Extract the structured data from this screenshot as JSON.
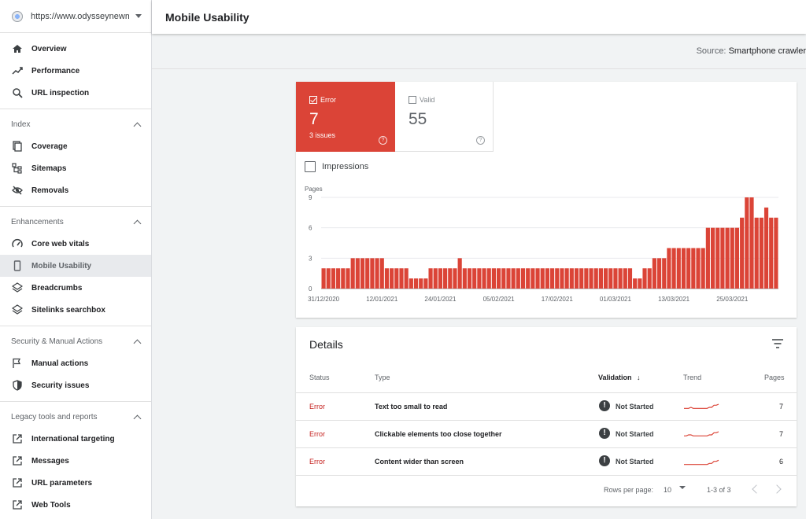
{
  "property": {
    "url": "https://www.odysseynewme..."
  },
  "sidebar": {
    "top_items": [
      {
        "label": "Overview",
        "icon": "home-icon"
      },
      {
        "label": "Performance",
        "icon": "trend-icon"
      },
      {
        "label": "URL inspection",
        "icon": "search-icon"
      }
    ],
    "groups": [
      {
        "title": "Index",
        "items": [
          {
            "label": "Coverage",
            "icon": "coverage-icon"
          },
          {
            "label": "Sitemaps",
            "icon": "sitemap-icon"
          },
          {
            "label": "Removals",
            "icon": "eye-off-icon"
          }
        ]
      },
      {
        "title": "Enhancements",
        "items": [
          {
            "label": "Core web vitals",
            "icon": "gauge-icon"
          },
          {
            "label": "Mobile Usability",
            "icon": "phone-icon",
            "active": true
          },
          {
            "label": "Breadcrumbs",
            "icon": "layers-icon"
          },
          {
            "label": "Sitelinks searchbox",
            "icon": "layers-icon"
          }
        ]
      },
      {
        "title": "Security & Manual Actions",
        "items": [
          {
            "label": "Manual actions",
            "icon": "flag-icon"
          },
          {
            "label": "Security issues",
            "icon": "shield-icon"
          }
        ]
      },
      {
        "title": "Legacy tools and reports",
        "items": [
          {
            "label": "International targeting",
            "icon": "external-link-icon"
          },
          {
            "label": "Messages",
            "icon": "external-link-icon"
          },
          {
            "label": "URL parameters",
            "icon": "external-link-icon"
          },
          {
            "label": "Web Tools",
            "icon": "external-link-icon"
          }
        ]
      }
    ]
  },
  "header": {
    "title": "Mobile Usability"
  },
  "source": {
    "label": "Source:",
    "value": "Smartphone crawler"
  },
  "summary": {
    "error": {
      "label": "Error",
      "value": "7",
      "sub": "3 issues",
      "checked": true,
      "color": "#db4437"
    },
    "valid": {
      "label": "Valid",
      "value": "55",
      "checked": false
    }
  },
  "impressions": {
    "label": "Impressions"
  },
  "chart_data": {
    "type": "bar",
    "ylabel": "Pages",
    "yticks": [
      0,
      3,
      6,
      9
    ],
    "ylim": [
      0,
      9
    ],
    "color": "#db4437",
    "x_tick_labels": [
      "31/12/2020",
      "12/01/2021",
      "24/01/2021",
      "05/02/2021",
      "17/02/2021",
      "01/03/2021",
      "13/03/2021",
      "25/03/2021"
    ],
    "x_tick_positions": [
      0,
      12,
      24,
      36,
      48,
      60,
      72,
      84
    ],
    "values": [
      2,
      2,
      2,
      2,
      2,
      2,
      3,
      3,
      3,
      3,
      3,
      3,
      3,
      2,
      2,
      2,
      2,
      2,
      1,
      1,
      1,
      1,
      2,
      2,
      2,
      2,
      2,
      2,
      3,
      2,
      2,
      2,
      2,
      2,
      2,
      2,
      2,
      2,
      2,
      2,
      2,
      2,
      2,
      2,
      2,
      2,
      2,
      2,
      2,
      2,
      2,
      2,
      2,
      2,
      2,
      2,
      2,
      2,
      2,
      2,
      2,
      2,
      2,
      2,
      1,
      1,
      2,
      2,
      3,
      3,
      3,
      4,
      4,
      4,
      4,
      4,
      4,
      4,
      4,
      6,
      6,
      6,
      6,
      6,
      6,
      6,
      7,
      9,
      9,
      7,
      7,
      8,
      7,
      7
    ]
  },
  "details": {
    "title": "Details",
    "columns": {
      "status": "Status",
      "type": "Type",
      "validation": "Validation",
      "trend": "Trend",
      "pages": "Pages"
    },
    "rows": [
      {
        "status": "Error",
        "type": "Text too small to read",
        "validation": "Not Started",
        "pages": "7",
        "trend": [
          2,
          2,
          2,
          3,
          2,
          2,
          2,
          2,
          2,
          2,
          2,
          3,
          3,
          5,
          5,
          6
        ]
      },
      {
        "status": "Error",
        "type": "Clickable elements too close together",
        "validation": "Not Started",
        "pages": "7",
        "trend": [
          2,
          2,
          3,
          3,
          2,
          2,
          2,
          2,
          2,
          2,
          2,
          3,
          3,
          5,
          5,
          6
        ]
      },
      {
        "status": "Error",
        "type": "Content wider than screen",
        "validation": "Not Started",
        "pages": "6",
        "trend": [
          1,
          1,
          1,
          1,
          1,
          1,
          1,
          1,
          1,
          1,
          1,
          2,
          2,
          4,
          4,
          5
        ]
      }
    ],
    "pagination": {
      "rows_label": "Rows per page:",
      "rows_value": "10",
      "range": "1-3 of 3"
    }
  }
}
